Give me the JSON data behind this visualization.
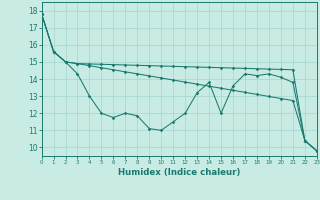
{
  "xlabel": "Humidex (Indice chaleur)",
  "background_color": "#c8ebe4",
  "grid_color": "#aad8d0",
  "line_color": "#1a7a70",
  "xlim": [
    0,
    23
  ],
  "ylim": [
    9.5,
    18.5
  ],
  "yticks": [
    10,
    11,
    12,
    13,
    14,
    15,
    16,
    17,
    18
  ],
  "xticks": [
    0,
    1,
    2,
    3,
    4,
    5,
    6,
    7,
    8,
    9,
    10,
    11,
    12,
    13,
    14,
    15,
    16,
    17,
    18,
    19,
    20,
    21,
    22,
    23
  ],
  "line1_y": [
    17.8,
    15.6,
    15.0,
    14.3,
    13.0,
    12.0,
    11.75,
    12.0,
    11.85,
    11.1,
    11.0,
    11.5,
    12.0,
    13.2,
    13.8,
    12.0,
    13.6,
    14.3,
    14.2,
    14.3,
    14.1,
    13.8,
    10.4,
    9.8
  ],
  "line2_y": [
    17.8,
    15.6,
    15.0,
    14.9,
    14.88,
    14.86,
    14.84,
    14.82,
    14.8,
    14.78,
    14.76,
    14.74,
    14.72,
    14.7,
    14.68,
    14.66,
    14.64,
    14.62,
    14.6,
    14.58,
    14.56,
    14.54,
    10.4,
    9.8
  ],
  "line3_y": [
    17.8,
    15.6,
    15.0,
    14.9,
    14.78,
    14.66,
    14.54,
    14.42,
    14.3,
    14.18,
    14.06,
    13.94,
    13.82,
    13.7,
    13.58,
    13.46,
    13.34,
    13.22,
    13.1,
    12.98,
    12.86,
    12.74,
    10.4,
    9.8
  ]
}
